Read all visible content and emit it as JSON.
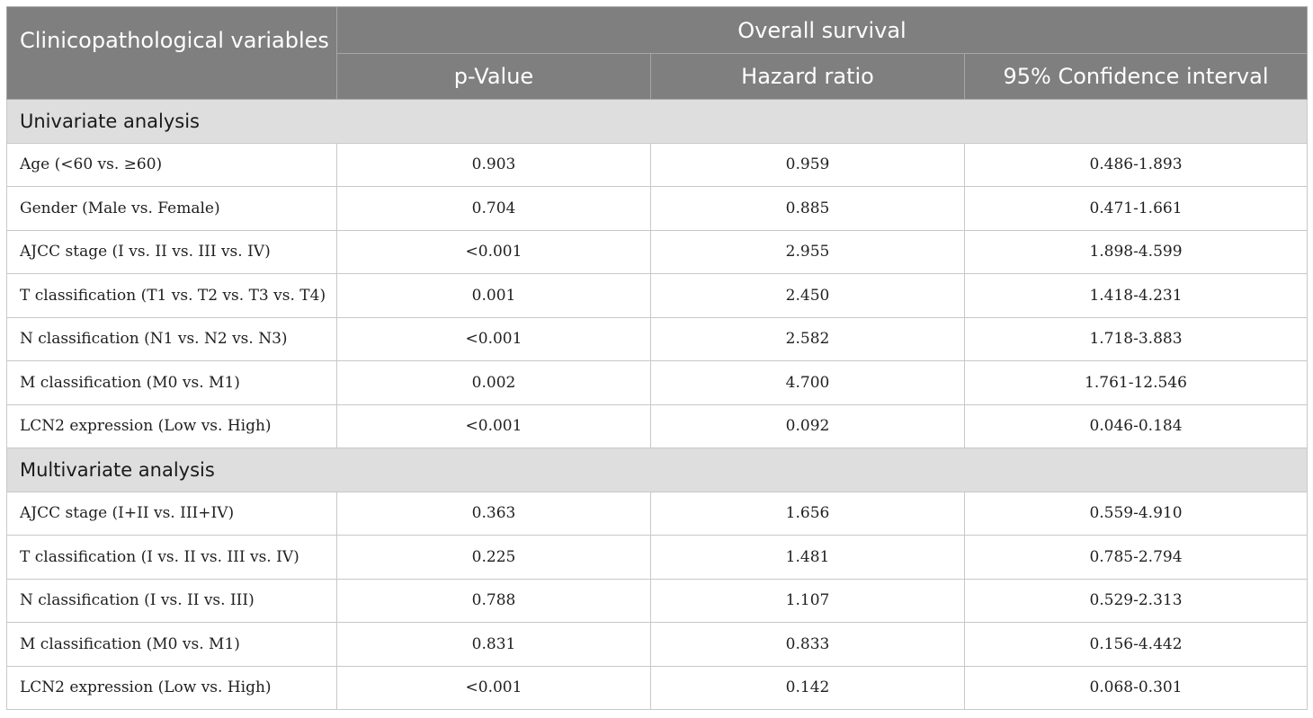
{
  "header": {
    "variables_label": "Clinicopathological variables",
    "group_label": "Overall survival",
    "columns": [
      "p-Value",
      "Hazard ratio",
      "95% Confidence interval"
    ]
  },
  "sections": [
    {
      "title": "Univariate analysis",
      "rows": [
        {
          "variable": "Age (<60 vs. ≥60)",
          "p": "0.903",
          "hr": "0.959",
          "ci": "0.486-1.893"
        },
        {
          "variable": "Gender (Male vs. Female)",
          "p": "0.704",
          "hr": "0.885",
          "ci": "0.471-1.661"
        },
        {
          "variable": "AJCC stage (I vs. II vs. III vs. IV)",
          "p": "<0.001",
          "hr": "2.955",
          "ci": "1.898-4.599"
        },
        {
          "variable": "T classification (T1 vs. T2 vs. T3 vs. T4)",
          "p": "0.001",
          "hr": "2.450",
          "ci": "1.418-4.231"
        },
        {
          "variable": "N classification (N1 vs. N2 vs. N3)",
          "p": "<0.001",
          "hr": "2.582",
          "ci": "1.718-3.883"
        },
        {
          "variable": "M classification (M0 vs. M1)",
          "p": "0.002",
          "hr": "4.700",
          "ci": "1.761-12.546"
        },
        {
          "variable": "LCN2 expression (Low vs. High)",
          "p": "<0.001",
          "hr": "0.092",
          "ci": "0.046-0.184"
        }
      ]
    },
    {
      "title": "Multivariate analysis",
      "rows": [
        {
          "variable": "AJCC stage (I+II vs. III+IV)",
          "p": "0.363",
          "hr": "1.656",
          "ci": "0.559-4.910"
        },
        {
          "variable": "T classification (I vs. II vs. III vs. IV)",
          "p": "0.225",
          "hr": "1.481",
          "ci": "0.785-2.794"
        },
        {
          "variable": "N classification (I vs. II vs. III)",
          "p": "0.788",
          "hr": "1.107",
          "ci": "0.529-2.313"
        },
        {
          "variable": "M classification (M0 vs. M1)",
          "p": "0.831",
          "hr": "0.833",
          "ci": "0.156-4.442"
        },
        {
          "variable": "LCN2 expression (Low vs. High)",
          "p": "<0.001",
          "hr": "0.142",
          "ci": "0.068-0.301"
        }
      ]
    }
  ]
}
